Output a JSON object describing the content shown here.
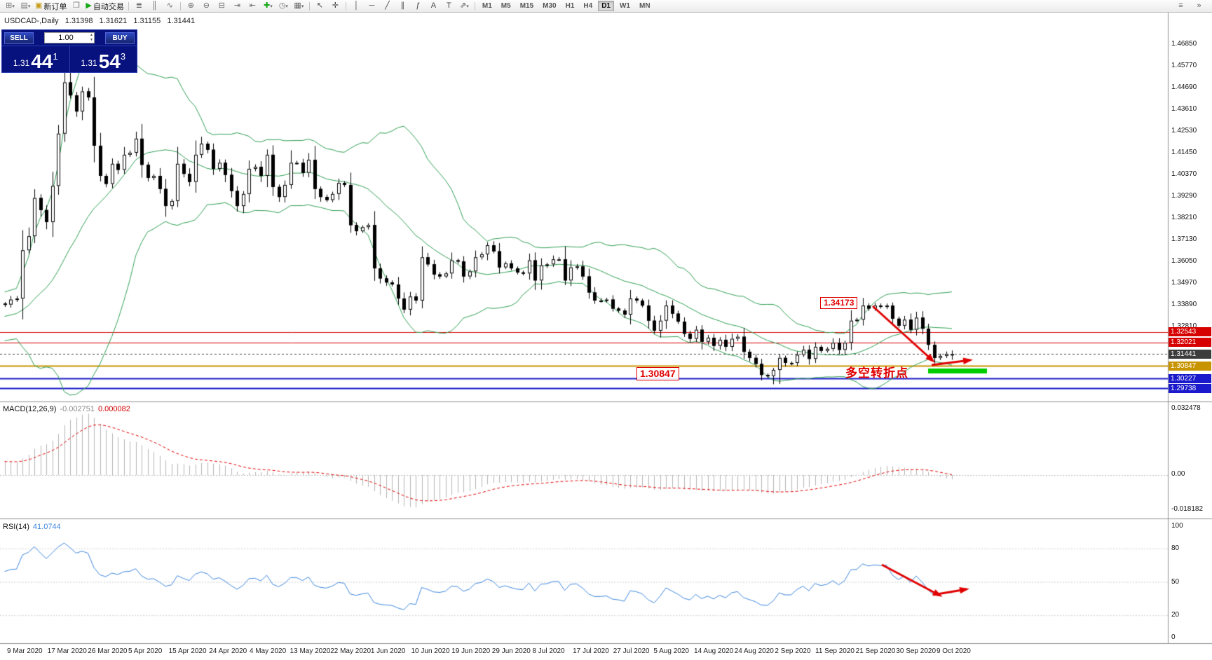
{
  "toolbar": {
    "items": [
      {
        "name": "new-chart-icon",
        "glyph": "⊞",
        "color": "#777",
        "caret": true
      },
      {
        "name": "profiles-icon",
        "glyph": "▤",
        "color": "#777",
        "caret": true
      },
      {
        "name": "new-order-button",
        "glyph": "▣",
        "color": "#c8a020",
        "label": "新订单"
      },
      {
        "name": "chart-cascade-icon",
        "glyph": "❐",
        "color": "#777"
      },
      {
        "name": "autotrading-button",
        "glyph": "▶",
        "color": "#18a818",
        "label": "自动交易"
      },
      {
        "type": "sep"
      },
      {
        "name": "ohlc-bars-icon",
        "glyph": "≣",
        "color": "#666"
      },
      {
        "name": "candlestick-chart-icon",
        "glyph": "║",
        "color": "#666"
      },
      {
        "name": "line-chart-icon",
        "glyph": "∿",
        "color": "#666"
      },
      {
        "type": "sep"
      },
      {
        "name": "zoom-in-icon",
        "glyph": "⊕",
        "color": "#666"
      },
      {
        "name": "zoom-out-icon",
        "glyph": "⊖",
        "color": "#666"
      },
      {
        "name": "tile-windows-icon",
        "glyph": "⊟",
        "color": "#666"
      },
      {
        "name": "auto-scroll-icon",
        "glyph": "⇥",
        "color": "#666"
      },
      {
        "name": "chart-shift-icon",
        "glyph": "⇤",
        "color": "#666"
      },
      {
        "name": "indicators-icon",
        "glyph": "✚",
        "color": "#18a818",
        "caret": true
      },
      {
        "name": "periods-icon",
        "glyph": "◷",
        "color": "#666",
        "caret": true
      },
      {
        "name": "templates-icon",
        "glyph": "▦",
        "color": "#666",
        "caret": true
      },
      {
        "type": "sep"
      },
      {
        "name": "cursor-icon",
        "glyph": "↖",
        "color": "#444"
      },
      {
        "name": "crosshair-icon",
        "glyph": "✛",
        "color": "#444"
      },
      {
        "type": "sep"
      },
      {
        "name": "vertical-line-icon",
        "glyph": "│",
        "color": "#444"
      },
      {
        "name": "horizontal-line-icon",
        "glyph": "─",
        "color": "#444"
      },
      {
        "name": "trendline-icon",
        "glyph": "╱",
        "color": "#444"
      },
      {
        "name": "equidistant-channel-icon",
        "glyph": "∥",
        "color": "#444"
      },
      {
        "name": "fibonacci-icon",
        "glyph": "ƒ",
        "color": "#444"
      },
      {
        "name": "text-icon",
        "glyph": "A",
        "color": "#444"
      },
      {
        "name": "text-label-icon",
        "glyph": "T",
        "color": "#444"
      },
      {
        "name": "arrows-tool-icon",
        "glyph": "⇗",
        "color": "#444",
        "caret": true
      },
      {
        "type": "sep"
      }
    ],
    "timeframes": [
      "M1",
      "M5",
      "M15",
      "M30",
      "H1",
      "H4",
      "D1",
      "W1",
      "MN"
    ],
    "active_timeframe": "D1",
    "right_items": [
      {
        "name": "toolbar-menu-icon",
        "glyph": "≡",
        "color": "#666"
      },
      {
        "name": "toolbar-overflow-icon",
        "glyph": "»",
        "color": "#666"
      }
    ]
  },
  "symbol_info": {
    "name": "USDCAD-,Daily",
    "o": "1.31398",
    "h": "1.31621",
    "l": "1.31155",
    "c": "1.31441"
  },
  "one_click": {
    "sell_label": "SELL",
    "buy_label": "BUY",
    "volume": "1.00",
    "sell_price_main": "1.31",
    "sell_price_big": "44",
    "sell_price_sup": "1",
    "buy_price_main": "1.31",
    "buy_price_big": "54",
    "buy_price_sup": "3"
  },
  "annotations": {
    "peak": "1.34173",
    "support": "1.30847",
    "turning_point": "多空转折点"
  },
  "macd": {
    "label": "MACD(12,26,9)",
    "main_value": "-0.002751",
    "signal_value": "0.000082",
    "scale_top": "0.032478",
    "scale_zero": "0.00",
    "scale_bottom": "-0.018182"
  },
  "rsi": {
    "label": "RSI(14)",
    "value": "41.0744",
    "scale": [
      "100",
      "80",
      "50",
      "20",
      "0"
    ]
  },
  "scale": {
    "labels": [
      "1.46850",
      "1.45770",
      "1.44690",
      "1.43610",
      "1.42530",
      "1.41450",
      "1.40370",
      "1.39290",
      "1.38210",
      "1.37130",
      "1.36050",
      "1.34970",
      "1.33890",
      "1.32810"
    ]
  },
  "levels": [
    {
      "value": "1.32543",
      "price": 1.32543,
      "color": "#d60000",
      "style": "solid",
      "width": 1
    },
    {
      "value": "1.32021",
      "price": 1.32021,
      "color": "#d60000",
      "style": "solid",
      "width": 1
    },
    {
      "value": "1.31441",
      "price": 1.31441,
      "color": "#3c3c3c",
      "style": "dashed",
      "width": 1
    },
    {
      "value": "1.30847",
      "price": 1.30847,
      "color": "#c79400",
      "style": "solid",
      "width": 2
    },
    {
      "value": "1.30227",
      "price": 1.30227,
      "color": "#1a1acc",
      "style": "solid",
      "width": 2
    },
    {
      "value": "1.29738",
      "price": 1.29738,
      "color": "#1a1acc",
      "style": "solid",
      "width": 2
    }
  ],
  "dates": [
    "9 Mar 2020",
    "17 Mar 2020",
    "26 Mar 2020",
    "5 Apr 2020",
    "15 Apr 2020",
    "24 Apr 2020",
    "4 May 2020",
    "13 May 2020",
    "22 May 2020",
    "1 Jun 2020",
    "10 Jun 2020",
    "19 Jun 2020",
    "29 Jun 2020",
    "8 Jul 2020",
    "17 Jul 2020",
    "27 Jul 2020",
    "5 Aug 2020",
    "14 Aug 2020",
    "24 Aug 2020",
    "2 Sep 2020",
    "11 Sep 2020",
    "21 Sep 2020",
    "30 Sep 2020",
    "9 Oct 2020"
  ],
  "series": {
    "warmup": [
      1.2995,
      1.298,
      1.297,
      1.2985,
      1.3,
      1.3025,
      1.305,
      1.304,
      1.306,
      1.3075,
      1.309,
      1.3105,
      1.312,
      1.3135,
      1.315,
      1.317,
      1.3185,
      1.32,
      1.322,
      1.324,
      1.3255,
      1.327,
      1.3285,
      1.33,
      1.329,
      1.328,
      1.327,
      1.326,
      1.325,
      1.3265,
      1.338,
      1.331,
      1.339,
      1.33,
      1.342,
      1.335,
      1.344,
      1.337,
      1.341,
      1.3395
    ],
    "closes": [
      1.339,
      1.3415,
      1.342,
      1.366,
      1.373,
      1.392,
      1.386,
      1.38,
      1.398,
      1.424,
      1.4495,
      1.443,
      1.435,
      1.445,
      1.442,
      1.418,
      1.403,
      1.399,
      1.409,
      1.406,
      1.4135,
      1.4145,
      1.4215,
      1.4085,
      1.402,
      1.403,
      1.3965,
      1.388,
      1.3905,
      1.409,
      1.404,
      1.4,
      1.4135,
      1.419,
      1.416,
      1.4065,
      1.4095,
      1.4035,
      1.3955,
      1.388,
      1.394,
      1.4065,
      1.4075,
      1.403,
      1.4135,
      1.3975,
      1.3925,
      1.3985,
      1.4095,
      1.4095,
      1.4045,
      1.411,
      1.3965,
      1.3925,
      1.391,
      1.394,
      1.3995,
      1.3985,
      1.3785,
      1.3755,
      1.3775,
      1.3785,
      1.357,
      1.352,
      1.35,
      1.349,
      1.342,
      1.3365,
      1.343,
      1.341,
      1.3625,
      1.359,
      1.354,
      1.353,
      1.3545,
      1.361,
      1.3605,
      1.353,
      1.3555,
      1.3625,
      1.364,
      1.3685,
      1.3655,
      1.3575,
      1.3595,
      1.357,
      1.355,
      1.3545,
      1.361,
      1.351,
      1.3585,
      1.359,
      1.3615,
      1.3615,
      1.351,
      1.3575,
      1.358,
      1.353,
      1.345,
      1.341,
      1.341,
      1.3415,
      1.337,
      1.336,
      1.334,
      1.342,
      1.341,
      1.3385,
      1.331,
      1.326,
      1.331,
      1.3385,
      1.3345,
      1.3305,
      1.3245,
      1.322,
      1.3265,
      1.3205,
      1.3225,
      1.3185,
      1.3215,
      1.318,
      1.322,
      1.323,
      1.3155,
      1.3125,
      1.3095,
      1.304,
      1.3035,
      1.3065,
      1.3125,
      1.31,
      1.31,
      1.314,
      1.3165,
      1.312,
      1.318,
      1.316,
      1.317,
      1.32,
      1.3165,
      1.32,
      1.331,
      1.3315,
      1.3385,
      1.337,
      1.3385,
      1.338,
      1.3385,
      1.332,
      1.3285,
      1.3315,
      1.3265,
      1.3325,
      1.327,
      1.319,
      1.3125,
      1.3135,
      1.3145,
      1.31441
    ],
    "overrides": {
      "open": {
        "159": 1.31398
      },
      "high": {
        "3": 1.376,
        "10": 1.4668,
        "11": 1.46,
        "159": 1.31621
      },
      "low": {
        "129": 1.2994,
        "130": 1.2995,
        "159": 1.31155
      }
    }
  },
  "colors": {
    "bollinger": "#2e9e52",
    "macd_hist": "#b4b4b4",
    "macd_signal": "#e00000",
    "rsi_line": "#3d85dd",
    "annotation": "#e00000",
    "support_bar": "#00cc00",
    "bull": "#ffffff",
    "bear": "#000000"
  }
}
